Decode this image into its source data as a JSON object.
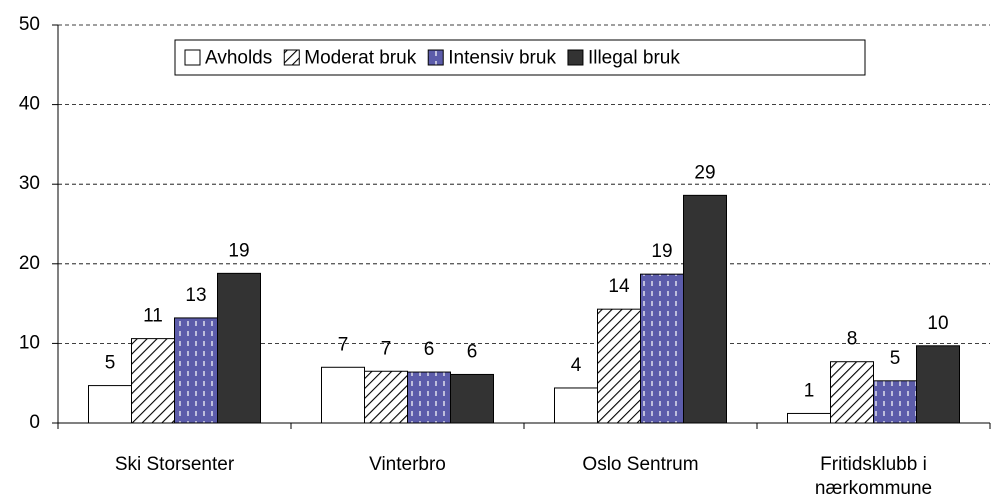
{
  "chart_data": {
    "type": "bar",
    "categories": [
      "Ski Storsenter",
      "Vinterbro",
      "Oslo Sentrum",
      "Fritidsklubb i nærkommune"
    ],
    "series": [
      {
        "name": "Avholds",
        "color": "#ffffff",
        "values": [
          4.7,
          7.0,
          4.4,
          1.2
        ],
        "value_labels": [
          "5",
          "7",
          "4",
          "1"
        ]
      },
      {
        "name": "Moderat bruk",
        "color": "#ffffff",
        "values": [
          10.6,
          6.5,
          14.3,
          7.7
        ],
        "value_labels": [
          "11",
          "7",
          "14",
          "8"
        ]
      },
      {
        "name": "Intensiv bruk",
        "color": "#5c5caa",
        "values": [
          13.2,
          6.4,
          18.7,
          5.3
        ],
        "value_labels": [
          "13",
          "6",
          "19",
          "5"
        ]
      },
      {
        "name": "Illegal bruk",
        "color": "#333333",
        "values": [
          18.8,
          6.1,
          28.6,
          9.7
        ],
        "value_labels": [
          "19",
          "6",
          "29",
          "10"
        ]
      }
    ],
    "ylim": [
      0,
      50
    ],
    "yticks": [
      0,
      10,
      20,
      30,
      40,
      50
    ],
    "grid": true,
    "legend": "top"
  }
}
